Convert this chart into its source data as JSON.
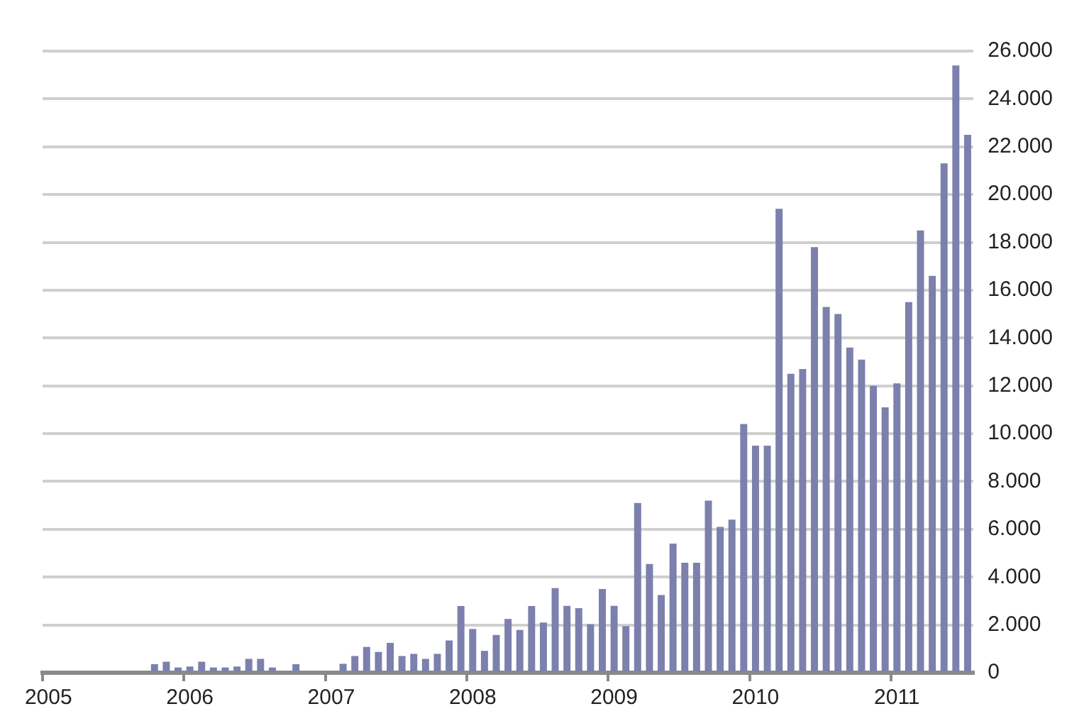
{
  "chart_data": {
    "type": "bar",
    "color": "#7b80ac",
    "grid": "y",
    "categories": [
      "2005",
      null,
      null,
      null,
      null,
      null,
      null,
      null,
      null,
      null,
      null,
      null,
      "2006",
      null,
      null,
      null,
      null,
      null,
      null,
      null,
      null,
      null,
      null,
      null,
      "2007",
      null,
      null,
      null,
      null,
      null,
      null,
      null,
      null,
      null,
      null,
      null,
      "2008",
      null,
      null,
      null,
      null,
      null,
      null,
      null,
      null,
      null,
      null,
      null,
      "2009",
      null,
      null,
      null,
      null,
      null,
      null,
      null,
      null,
      null,
      null,
      null,
      "2010",
      null,
      null,
      null,
      null,
      null,
      null,
      null,
      null,
      null,
      null,
      null,
      "2011",
      null,
      null,
      null,
      null,
      null,
      null
    ],
    "values": [
      0,
      0,
      0,
      0,
      0,
      0,
      0,
      0,
      0,
      360,
      460,
      220,
      260,
      460,
      220,
      220,
      260,
      580,
      580,
      220,
      0,
      360,
      0,
      0,
      0,
      375,
      700,
      1080,
      870,
      1250,
      700,
      790,
      580,
      790,
      1350,
      2790,
      1830,
      915,
      1580,
      2250,
      1790,
      2790,
      2100,
      3540,
      2800,
      2700,
      2030,
      3500,
      2800,
      1950,
      7100,
      4550,
      3250,
      5400,
      4600,
      4600,
      7200,
      6100,
      6400,
      10400,
      9500,
      9500,
      19400,
      12500,
      12700,
      17800,
      15300,
      15000,
      13600,
      13100,
      12000,
      11100,
      12100,
      15500,
      18500,
      16600,
      21300,
      25400,
      22500
    ],
    "ylim": [
      0,
      26000
    ],
    "yticks": [
      {
        "value": 0,
        "label": "0"
      },
      {
        "value": 2000,
        "label": "2.000"
      },
      {
        "value": 4000,
        "label": "4.000"
      },
      {
        "value": 6000,
        "label": "6.000"
      },
      {
        "value": 8000,
        "label": "8.000"
      },
      {
        "value": 10000,
        "label": "10.000"
      },
      {
        "value": 12000,
        "label": "12.000"
      },
      {
        "value": 14000,
        "label": "14.000"
      },
      {
        "value": 16000,
        "label": "16.000"
      },
      {
        "value": 18000,
        "label": "18.000"
      },
      {
        "value": 20000,
        "label": "20.000"
      },
      {
        "value": 22000,
        "label": "22.000"
      },
      {
        "value": 24000,
        "label": "24.000"
      },
      {
        "value": 26000,
        "label": "26.000"
      }
    ]
  }
}
